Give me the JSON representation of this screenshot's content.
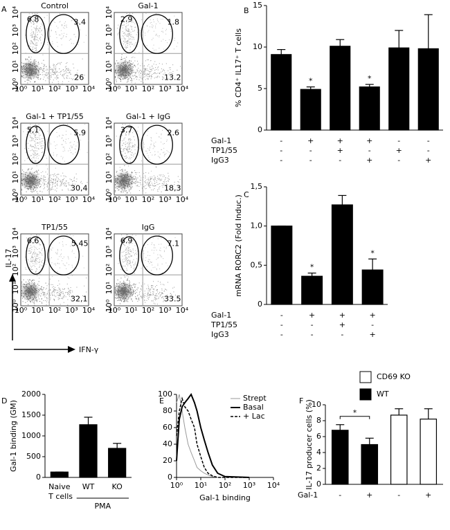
{
  "panel_labels": [
    "A",
    "B",
    "C",
    "D",
    "E",
    "F"
  ],
  "flow_panel": {
    "tick_labels": [
      "10⁰",
      "10¹",
      "10²",
      "10³",
      "10⁴"
    ],
    "y_label": "IL-17",
    "x_label": "IFN-γ",
    "plots": [
      {
        "title": "Control",
        "upper_left": "6.8",
        "upper_right": "3.4",
        "lower_right": "26"
      },
      {
        "title": "Gal-1",
        "upper_left": "2.9",
        "upper_right": "1.8",
        "lower_right": "13.2"
      },
      {
        "title": "Gal-1 + TP1/55",
        "upper_left": "5,1",
        "upper_right": "5.9",
        "lower_right": "30,4"
      },
      {
        "title": "Gal-1 + IgG",
        "upper_left": "3.7",
        "upper_right": "2.6",
        "lower_right": "18,3"
      },
      {
        "title": "TP1/55",
        "upper_left": "6.6",
        "upper_right": "5.45",
        "lower_right": "32,1"
      },
      {
        "title": "IgG",
        "upper_left": "6.9",
        "upper_right": "7.1",
        "lower_right": "33.5"
      }
    ]
  },
  "chart_data": [
    {
      "type": "bar",
      "y_label": "% CD4⁺ IL17⁺ T cells",
      "color": "#000000",
      "values": [
        9.1,
        4.9,
        10.1,
        5.2,
        9.9,
        9.8
      ],
      "errors": [
        0.6,
        0.3,
        0.8,
        0.3,
        2.1,
        4.1
      ],
      "ylim": [
        0,
        15
      ],
      "yticks": [
        0,
        5,
        10,
        15
      ],
      "rows": [
        {
          "name": "Gal-1",
          "signs": [
            "-",
            "+",
            "+",
            "+",
            "-",
            "-"
          ]
        },
        {
          "name": "TP1/55",
          "signs": [
            "-",
            "-",
            "+",
            "-",
            "+",
            "-"
          ]
        },
        {
          "name": "IgG3",
          "signs": [
            "-",
            "-",
            "-",
            "+",
            "-",
            "+"
          ]
        }
      ],
      "annotations": [
        {
          "index": 1,
          "text": "*"
        },
        {
          "index": 3,
          "text": "*"
        }
      ]
    },
    {
      "type": "bar",
      "y_label": "mRNA RORC2 (Fold Induc.)",
      "color": "#000000",
      "values": [
        1.0,
        0.36,
        1.27,
        0.44
      ],
      "errors": [
        0,
        0.04,
        0.12,
        0.14
      ],
      "ylim": [
        0,
        1.5
      ],
      "yticks": [
        0,
        {
          "value": 0.5,
          "label": "0,5"
        },
        {
          "value": 1.0,
          "label": "1,0"
        },
        {
          "value": 1.5,
          "label": "1,5"
        }
      ],
      "rows": [
        {
          "name": "Gal-1",
          "signs": [
            "-",
            "+",
            "+",
            "+"
          ]
        },
        {
          "name": "TP1/55",
          "signs": [
            "-",
            "-",
            "+",
            "-"
          ]
        },
        {
          "name": "IgG3",
          "signs": [
            "-",
            "-",
            "-",
            "+"
          ]
        }
      ],
      "annotations": [
        {
          "index": 1,
          "text": "*"
        },
        {
          "index": 3,
          "text": "*"
        }
      ]
    },
    {
      "type": "bar",
      "y_label": "Gal-1 binding (GM)",
      "color": "#000000",
      "categories": [
        "Naive T cells",
        "WT",
        "KO"
      ],
      "values": [
        130,
        1270,
        700
      ],
      "errors": [
        0,
        180,
        120
      ],
      "ylim": [
        0,
        2000
      ],
      "yticks": [
        0,
        500,
        1000,
        1500,
        2000
      ],
      "group": {
        "label": "PMA",
        "from": 1,
        "to": 2
      }
    },
    {
      "type": "line",
      "x_label": "Gal-1 binding",
      "log_x": true,
      "x": [
        1,
        1.3,
        1.7,
        2.2,
        3,
        4,
        5.5,
        7,
        10,
        14,
        20,
        30,
        50,
        100,
        1000
      ],
      "series": [
        {
          "name": "Strept",
          "color": "#999999",
          "width": 1,
          "dash": false,
          "values": [
            90,
            100,
            80,
            60,
            40,
            30,
            20,
            12,
            8,
            5,
            3,
            1,
            0,
            0,
            0
          ]
        },
        {
          "name": "Basal",
          "color": "#000000",
          "width": 2,
          "dash": false,
          "values": [
            20,
            70,
            85,
            90,
            95,
            100,
            90,
            80,
            60,
            45,
            30,
            15,
            5,
            1,
            0
          ]
        },
        {
          "name": "+ Lac",
          "color": "#000000",
          "width": 1.5,
          "dash": true,
          "values": [
            50,
            80,
            95,
            85,
            80,
            70,
            60,
            40,
            25,
            12,
            5,
            2,
            0,
            0,
            0
          ]
        }
      ],
      "xlim": [
        1,
        10000
      ],
      "xticks": [
        {
          "value": 1,
          "label": "10⁰"
        },
        {
          "value": 10,
          "label": "10¹"
        },
        {
          "value": 100,
          "label": "10²"
        },
        {
          "value": 1000,
          "label": "10³"
        },
        {
          "value": 10000,
          "label": "10⁴"
        }
      ],
      "ylim": [
        0,
        100
      ],
      "yticks": [
        0,
        20,
        40,
        60,
        80,
        100
      ]
    },
    {
      "type": "bar",
      "y_label": "IL-17 producer cells (%)",
      "series": [
        {
          "name": "CD69 KO",
          "color": "#ffffff",
          "values": [
            null,
            null,
            8.7,
            8.2
          ]
        },
        {
          "name": "WT",
          "color": "#000000",
          "values": [
            6.8,
            5.0,
            null,
            null
          ]
        }
      ],
      "errors": [
        0.7,
        0.8,
        0.8,
        1.3
      ],
      "ylim": [
        0,
        10
      ],
      "yticks": [
        0,
        2,
        4,
        6,
        8,
        10
      ],
      "rows": [
        {
          "name": "Gal-1",
          "signs": [
            "-",
            "+",
            "-",
            "+"
          ]
        }
      ],
      "significance": [
        {
          "from": 0,
          "to": 1,
          "text": "*"
        }
      ]
    }
  ]
}
